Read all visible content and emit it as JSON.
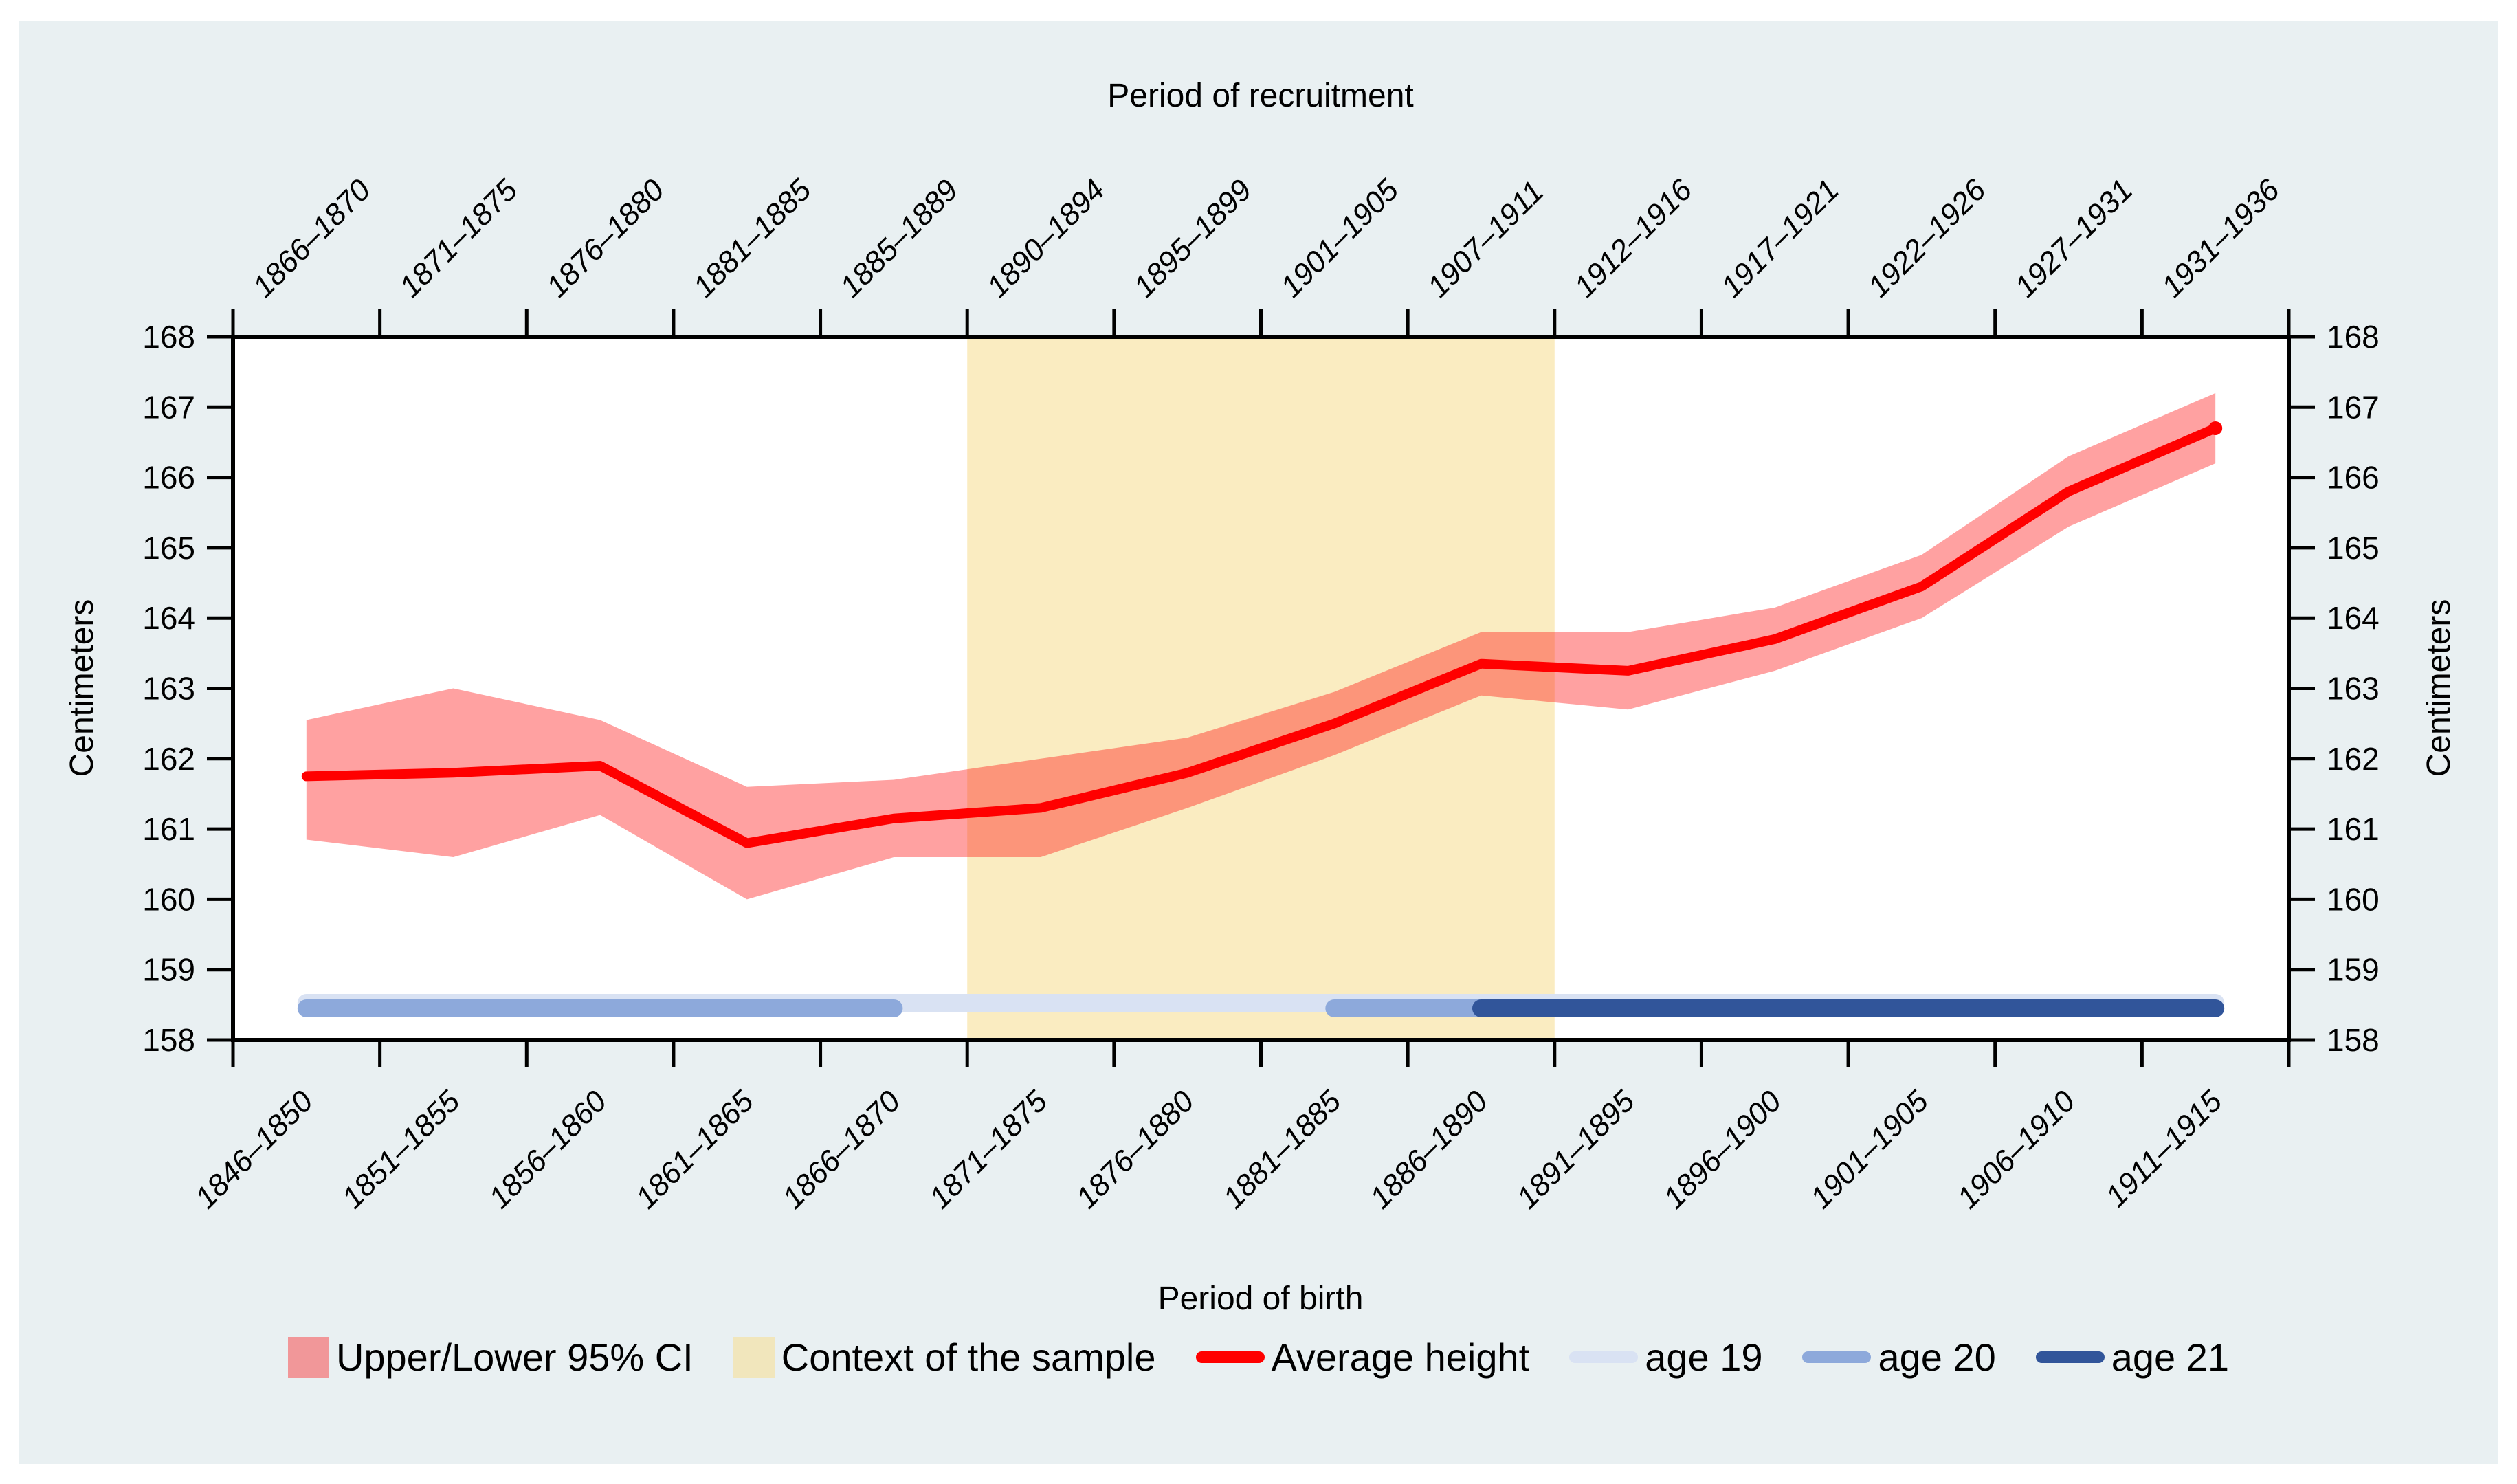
{
  "figure": {
    "background_color": "#E9F0F2",
    "outer_border_color": "#FFFFFF",
    "plot_background_color": "#FFFFFF",
    "axis_color": "#000000",
    "text_color": "#000000"
  },
  "chart_data": {
    "type": "line",
    "grid": false,
    "top_axis": {
      "title": "Period of recruitment",
      "labels": [
        "1866–1870",
        "1871–1875",
        "1876–1880",
        "1881–1885",
        "1885–1889",
        "1890–1894",
        "1895–1899",
        "1901–1905",
        "1907–1911",
        "1912–1916",
        "1917–1921",
        "1922–1926",
        "1927–1931",
        "1931–1936"
      ]
    },
    "bottom_axis": {
      "title": "Period of birth"
    },
    "categories": [
      "1846–1850",
      "1851–1855",
      "1856–1860",
      "1861–1865",
      "1866–1870",
      "1871–1875",
      "1876–1880",
      "1881–1885",
      "1886–1890",
      "1891–1895",
      "1896–1900",
      "1901–1905",
      "1906–1910",
      "1911–1915"
    ],
    "ylabel_left": "Centimeters",
    "ylabel_right": "Centimeters",
    "ylim": [
      158,
      168
    ],
    "yticks": [
      158,
      159,
      160,
      161,
      162,
      163,
      164,
      165,
      166,
      167,
      168
    ],
    "series": [
      {
        "name": "Average height",
        "type": "line",
        "color": "#FF0000",
        "values": [
          161.75,
          161.8,
          161.9,
          160.8,
          161.15,
          161.3,
          161.8,
          162.5,
          163.35,
          163.25,
          163.7,
          164.45,
          165.8,
          166.7
        ]
      }
    ],
    "ci_band": {
      "name": "Upper/Lower 95% CI",
      "fill_color": "#FF0000",
      "fill_opacity": 0.37,
      "upper": [
        162.55,
        163.0,
        162.55,
        161.6,
        161.7,
        162.0,
        162.3,
        162.95,
        163.8,
        163.8,
        164.15,
        164.9,
        166.3,
        167.2
      ],
      "lower": [
        160.85,
        160.6,
        161.2,
        160.0,
        160.6,
        160.6,
        161.3,
        162.05,
        162.9,
        162.7,
        163.25,
        164.0,
        165.3,
        166.2
      ]
    },
    "context_band": {
      "name": "Context of the sample",
      "fill_color": "#F7DF94",
      "fill_opacity": 0.58,
      "from_category": "1871–1875",
      "to_category": "1886–1890",
      "start_index": 5,
      "end_index": 8
    },
    "age_bars": {
      "y_value": 158.45,
      "segments": [
        {
          "name": "age 19",
          "color": "#D9E2F3",
          "from_index": 0,
          "to_index": 13
        },
        {
          "name": "age 20",
          "color": "#8DA9DB",
          "from_index": 0,
          "to_index": 4
        },
        {
          "name": "age 20",
          "color": "#8DA9DB",
          "from_index": 7,
          "to_index": 8
        },
        {
          "name": "age 21",
          "color": "#31559A",
          "from_index": 8,
          "to_index": 13
        }
      ]
    },
    "legend": {
      "position": "bottom",
      "entries": [
        {
          "label": "Upper/Lower 95% CI",
          "swatch": "square",
          "color": "rgba(255,0,0,0.37)"
        },
        {
          "label": "Context of the sample",
          "swatch": "square",
          "color": "rgba(247,223,148,0.58)"
        },
        {
          "label": "Average height",
          "swatch": "line",
          "color": "#FF0000"
        },
        {
          "label": "age 19",
          "swatch": "line",
          "color": "#D9E2F3"
        },
        {
          "label": "age 20",
          "swatch": "line",
          "color": "#8DA9DB"
        },
        {
          "label": "age 21",
          "swatch": "line",
          "color": "#31559A"
        }
      ]
    }
  }
}
